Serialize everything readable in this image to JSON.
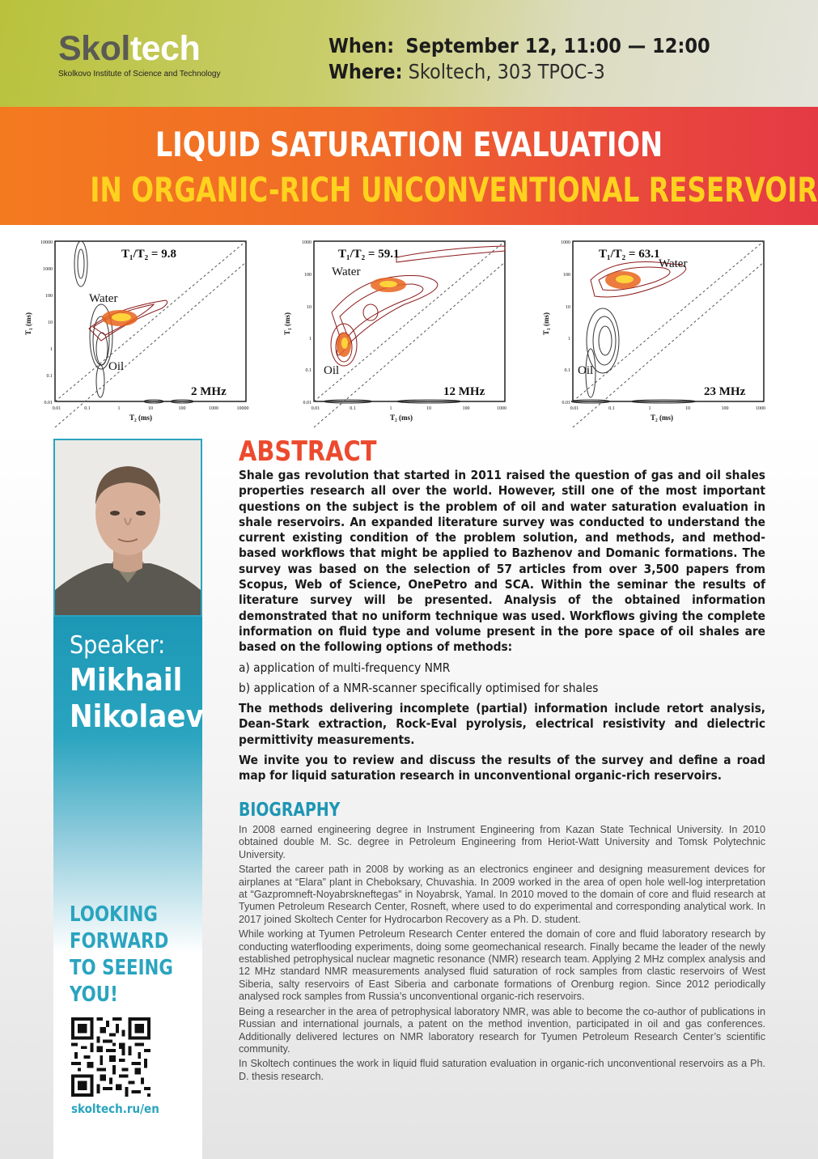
{
  "header": {
    "logo_main_a": "Skol",
    "logo_main_b": "tech",
    "logo_sub": "Skolkovo Institute of Science and Technology",
    "when_label": "When:",
    "when_value": "September 12, 11:00 — 12:00",
    "where_label": "Where:",
    "where_value": "Skoltech, 303 TPOC-3"
  },
  "title": {
    "line1": "LIQUID SATURATION EVALUATION",
    "line2": "IN ORGANIC-RICH UNCONVENTIONAL RESERVOIRS"
  },
  "figures": [
    {
      "ratio": "T₁/T₂ = 9.8",
      "freq": "2 MHz",
      "water": "Water",
      "oil": "Oil",
      "ylabel": "T₁ (ms)",
      "xlabel": "T₂ (ms)",
      "yticks": [
        "10000",
        "1000",
        "100",
        "10",
        "1",
        "0.1",
        "0.01"
      ],
      "xticks": [
        "0.01",
        "0.1",
        "1",
        "10",
        "100",
        "1000",
        "10000"
      ]
    },
    {
      "ratio": "T₁/T₂ = 59.1",
      "freq": "12 MHz",
      "water": "Water",
      "oil": "Oil",
      "ylabel": "T₁ (ms)",
      "xlabel": "T₂ (ms)",
      "yticks": [
        "1000",
        "100",
        "10",
        "1",
        "0.1",
        "0.01"
      ],
      "xticks": [
        "0.01",
        "0.1",
        "1",
        "10",
        "100",
        "1000"
      ]
    },
    {
      "ratio": "T₁/T₂ = 63.1",
      "freq": "23 MHz",
      "water": "Water",
      "oil": "Oil",
      "ylabel": "T₁ (ms)",
      "xlabel": "T₂ (ms)",
      "yticks": [
        "1000",
        "100",
        "10",
        "1",
        "0.1",
        "0.01"
      ],
      "xticks": [
        "0.01",
        "0.1",
        "1",
        "10",
        "100",
        "1000"
      ]
    }
  ],
  "speaker": {
    "label": "Speaker:",
    "first_name": "Mikhail",
    "last_name": "Nikolaev"
  },
  "cta": {
    "line1": "LOOKING",
    "line2": "FORWARD",
    "line3": "TO SEEING",
    "line4": "YOU!",
    "site": "skoltech.ru/en"
  },
  "abstract": {
    "heading": "ABSTRACT",
    "p1": "Shale gas revolution that started in 2011 raised the question of gas and oil shales properties research all over the world. However, still one of the most important questions on the subject is the problem of oil and water saturation evaluation in shale reservoirs. An expanded literature survey was conducted to understand the current existing condition of the problem solution, and methods, and method-based workflows that might be applied to Bazhenov and Domanic formations. The survey was based on the selection of 57 articles from over 3,500 papers from Scopus, Web of Science, OnePetro and SCA. Within the seminar the results of literature survey will be presented. Analysis of the obtained information demonstrated that no uniform technique was used. Workflows giving the complete information on fluid type and volume present in the pore space of oil shales are based on the following options of methods:",
    "item_a": "a) application of multi-frequency NMR",
    "item_b": "b) application of a NMR-scanner specifically optimised for shales",
    "p2": "The methods delivering incomplete (partial) information include retort analysis, Dean-Stark extraction, Rock-Eval pyrolysis, electrical resistivity and dielectric permittivity measurements.",
    "p3": "We invite you to review and discuss the results of the survey and define a road map for liquid saturation research in unconventional organic-rich reservoirs."
  },
  "biography": {
    "heading": "BIOGRAPHY",
    "p1": "In 2008 earned engineering degree in Instrument Engineering from Kazan State Technical University. In 2010 obtained double M. Sc. degree in Petroleum Engineering from Heriot-Watt University and Tomsk Polytechnic University.",
    "p2": "Started the career path in 2008 by working as an electronics engineer and designing measurement devices for airplanes at “Elara” plant in Cheboksary, Chuvashia. In 2009 worked in the area of open hole well-log interpretation at “Gazpromneft-Noyabrskneftegas” in Noyabrsk, Yamal. In 2010 moved to the domain of core and fluid research at Tyumen Petroleum Research Center, Rosneft, where used to do experimental and corresponding analytical work. In 2017 joined Skoltech Center for Hydrocarbon Recovery as a Ph. D. student.",
    "p3": "While working at Tyumen Petroleum Research Center entered the domain of core and fluid laboratory research by conducting waterflooding experiments, doing some geomechanical research. Finally became the leader of the newly established petrophysical nuclear magnetic resonance (NMR) research team. Applying 2 MHz complex analysis and 12 MHz standard NMR measurements analysed fluid saturation of rock samples from clastic reservoirs of West Siberia, salty reservoirs of East Siberia and carbonate formations of Orenburg region. Since 2012 periodically analysed rock samples from Russia’s unconventional organic-rich reservoirs.",
    "p4": "Being a researcher in the area of petrophysical laboratory NMR, was able to become the co-author of publications in Russian and international journals, a patent on the method invention, participated in oil and gas conferences. Additionally delivered lectures on NMR laboratory research for Tyumen Petroleum Research Center’s scientific community.",
    "p5": "In Skoltech continues the work in liquid fluid saturation evaluation in organic-rich unconventional reservoirs as a Ph. D. thesis research."
  },
  "colors": {
    "accent_orange": "#ec4a2e",
    "accent_teal": "#2aa4bf",
    "header_green": "#b9c23c",
    "title_yellow": "#ffd21f"
  }
}
